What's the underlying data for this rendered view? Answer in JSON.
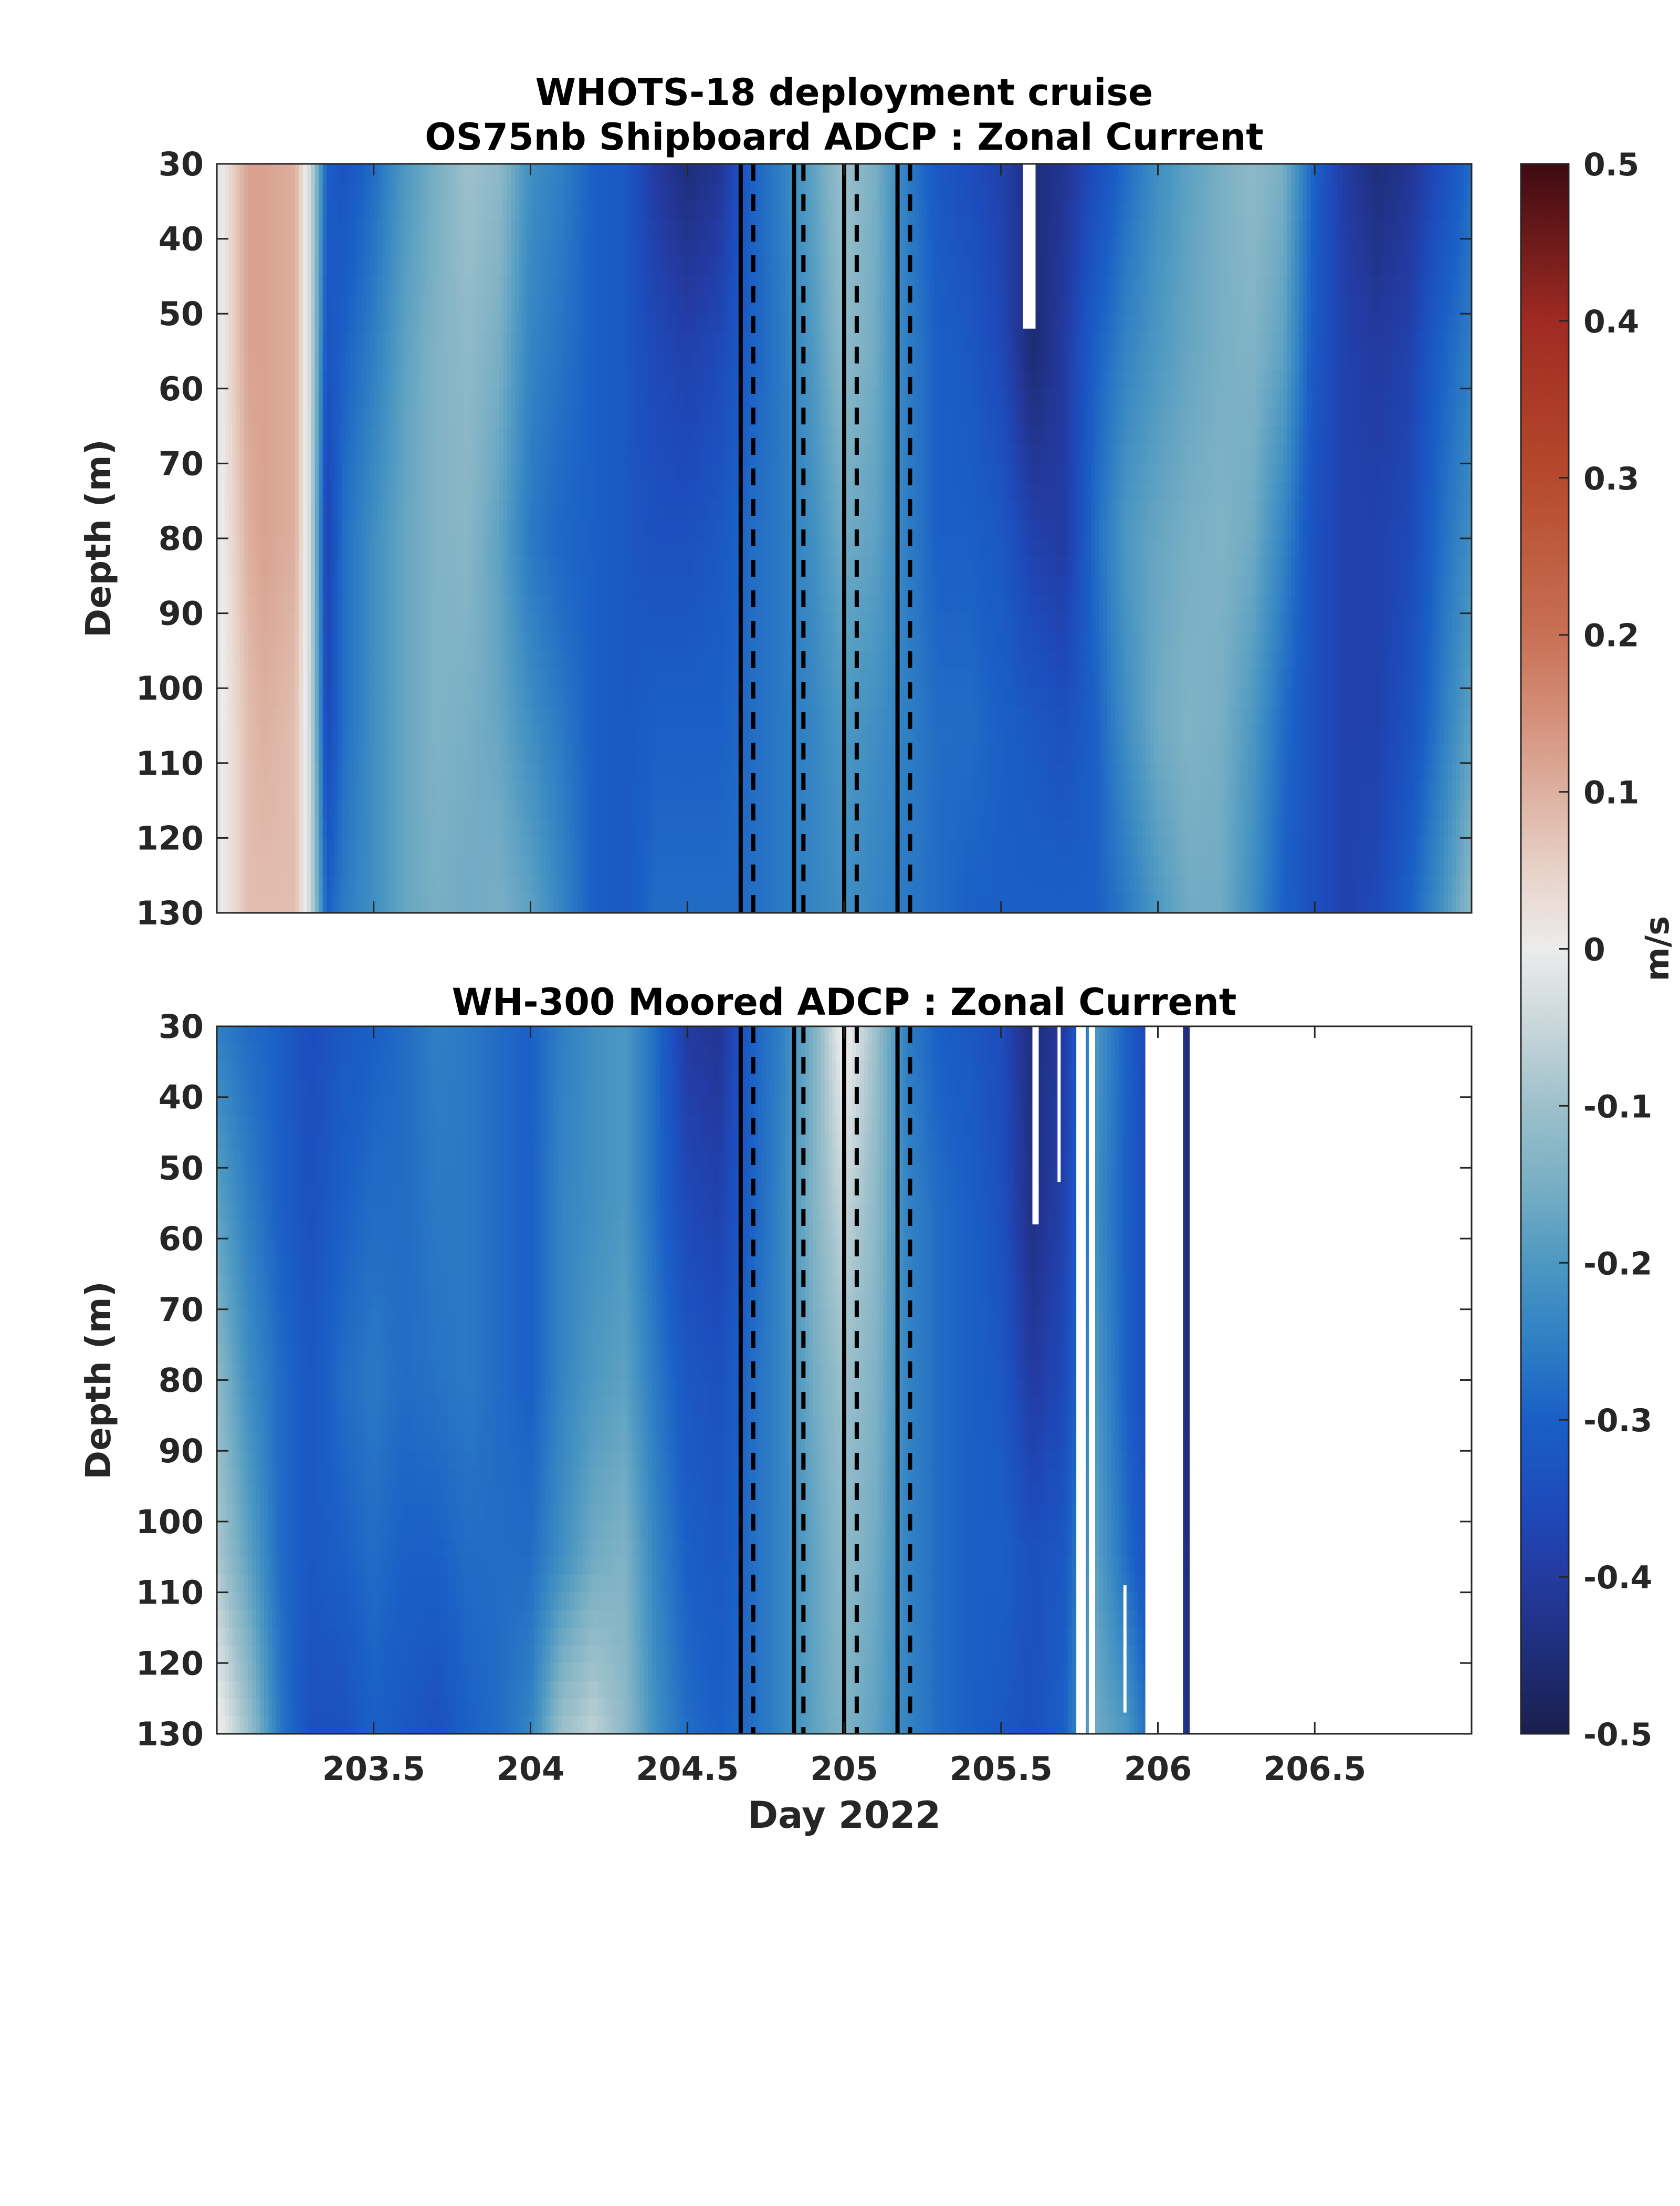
{
  "chart_data": {
    "type": "heatmap",
    "title": "WHOTS-18 deployment cruise",
    "colorbar": {
      "label": "m/s",
      "range": [
        -0.5,
        0.5
      ],
      "ticks": [
        -0.5,
        -0.4,
        -0.3,
        -0.2,
        -0.1,
        0,
        0.1,
        0.2,
        0.3,
        0.4,
        0.5
      ],
      "tick_labels": [
        "-0.5",
        "-0.4",
        "-0.3",
        "-0.2",
        "-0.1",
        "0",
        "0.1",
        "0.2",
        "0.3",
        "0.4",
        "0.5"
      ],
      "colormap": [
        [
          -0.5,
          "#1a1f4d"
        ],
        [
          -0.45,
          "#1f2e7a"
        ],
        [
          -0.4,
          "#233aa0"
        ],
        [
          -0.35,
          "#1d4cbd"
        ],
        [
          -0.3,
          "#1a5fc6"
        ],
        [
          -0.25,
          "#2f7fc4"
        ],
        [
          -0.2,
          "#4d98c2"
        ],
        [
          -0.15,
          "#79afc4"
        ],
        [
          -0.1,
          "#9dc0cb"
        ],
        [
          -0.05,
          "#c8d6da"
        ],
        [
          0,
          "#ececec"
        ],
        [
          0.05,
          "#e8d2c8"
        ],
        [
          0.1,
          "#ddb0a0"
        ],
        [
          0.15,
          "#d48e78"
        ],
        [
          0.2,
          "#c87055"
        ],
        [
          0.3,
          "#b64a2c"
        ],
        [
          0.4,
          "#a02a22"
        ],
        [
          0.5,
          "#3d0b12"
        ]
      ]
    },
    "vertical_lines": {
      "solid": [
        204.67,
        204.84,
        205.0,
        205.17
      ],
      "dashed": [
        204.71,
        204.87,
        205.04,
        205.21
      ]
    },
    "panels": [
      {
        "id": "shipboard",
        "title": "OS75nb Shipboard ADCP : Zonal Current",
        "xlabel": "",
        "ylabel": "Depth (m)",
        "xlim": [
          203.0,
          207.0
        ],
        "ylim": [
          30,
          130
        ],
        "y_reversed": true,
        "xticks": [
          203.5,
          204,
          204.5,
          205,
          205.5,
          206,
          206.5
        ],
        "xtick_labels": [],
        "yticks": [
          30,
          40,
          50,
          60,
          70,
          80,
          90,
          100,
          110,
          120,
          130
        ],
        "ytick_labels": [
          "30",
          "40",
          "50",
          "60",
          "70",
          "80",
          "90",
          "100",
          "110",
          "120",
          "130"
        ],
        "depths": [
          30,
          55,
          80,
          105,
          130
        ],
        "time": [
          203.0,
          203.1,
          203.15,
          203.25,
          203.3,
          203.35,
          203.4,
          203.5,
          203.6,
          203.7,
          203.8,
          203.9,
          204.0,
          204.1,
          204.2,
          204.3,
          204.4,
          204.5,
          204.6,
          204.7,
          204.8,
          204.9,
          205.0,
          205.1,
          205.2,
          205.3,
          205.4,
          205.5,
          205.6,
          205.7,
          205.8,
          205.9,
          206.0,
          206.1,
          206.2,
          206.3,
          206.4,
          206.5,
          206.6,
          206.7,
          206.8,
          206.9,
          207.0
        ],
        "u": [
          [
            -0.02,
            0.12,
            0.12,
            0.1,
            -0.05,
            -0.3,
            -0.33,
            -0.28,
            -0.2,
            -0.15,
            -0.1,
            -0.12,
            -0.22,
            -0.25,
            -0.3,
            -0.32,
            -0.4,
            -0.45,
            -0.42,
            -0.3,
            -0.25,
            -0.18,
            -0.1,
            -0.15,
            -0.25,
            -0.32,
            -0.35,
            -0.38,
            -0.45,
            -0.42,
            -0.35,
            -0.28,
            -0.22,
            -0.18,
            -0.15,
            -0.12,
            -0.15,
            -0.3,
            -0.4,
            -0.45,
            -0.42,
            -0.35,
            -0.28
          ],
          [
            -0.02,
            0.12,
            0.12,
            0.1,
            -0.05,
            -0.33,
            -0.3,
            -0.25,
            -0.18,
            -0.14,
            -0.12,
            -0.15,
            -0.24,
            -0.27,
            -0.3,
            -0.32,
            -0.36,
            -0.38,
            -0.36,
            -0.3,
            -0.26,
            -0.2,
            -0.12,
            -0.16,
            -0.25,
            -0.3,
            -0.32,
            -0.36,
            -0.46,
            -0.4,
            -0.3,
            -0.24,
            -0.2,
            -0.17,
            -0.15,
            -0.14,
            -0.18,
            -0.32,
            -0.38,
            -0.4,
            -0.38,
            -0.3,
            -0.25
          ],
          [
            -0.02,
            0.1,
            0.12,
            0.1,
            -0.05,
            -0.38,
            -0.28,
            -0.22,
            -0.17,
            -0.14,
            -0.13,
            -0.18,
            -0.26,
            -0.29,
            -0.3,
            -0.32,
            -0.34,
            -0.34,
            -0.32,
            -0.28,
            -0.26,
            -0.22,
            -0.16,
            -0.18,
            -0.25,
            -0.3,
            -0.3,
            -0.32,
            -0.38,
            -0.4,
            -0.28,
            -0.2,
            -0.17,
            -0.15,
            -0.14,
            -0.16,
            -0.24,
            -0.34,
            -0.38,
            -0.38,
            -0.36,
            -0.28,
            -0.22
          ],
          [
            -0.02,
            0.08,
            0.1,
            0.08,
            -0.05,
            -0.36,
            -0.28,
            -0.22,
            -0.17,
            -0.14,
            -0.15,
            -0.17,
            -0.22,
            -0.26,
            -0.3,
            -0.32,
            -0.3,
            -0.3,
            -0.3,
            -0.28,
            -0.26,
            -0.24,
            -0.2,
            -0.22,
            -0.25,
            -0.28,
            -0.28,
            -0.3,
            -0.32,
            -0.34,
            -0.3,
            -0.22,
            -0.16,
            -0.14,
            -0.15,
            -0.2,
            -0.28,
            -0.34,
            -0.38,
            -0.38,
            -0.34,
            -0.26,
            -0.18
          ],
          [
            -0.02,
            0.08,
            0.08,
            0.08,
            -0.05,
            -0.3,
            -0.26,
            -0.22,
            -0.17,
            -0.15,
            -0.16,
            -0.15,
            -0.18,
            -0.24,
            -0.3,
            -0.32,
            -0.28,
            -0.28,
            -0.28,
            -0.28,
            -0.26,
            -0.24,
            -0.22,
            -0.24,
            -0.26,
            -0.28,
            -0.3,
            -0.3,
            -0.3,
            -0.3,
            -0.3,
            -0.26,
            -0.2,
            -0.16,
            -0.16,
            -0.22,
            -0.3,
            -0.34,
            -0.38,
            -0.36,
            -0.3,
            -0.22,
            -0.12
          ]
        ],
        "missing": [
          {
            "x": [
              205.57,
              205.61
            ],
            "depth": [
              30,
              52
            ]
          }
        ]
      },
      {
        "id": "moored",
        "title": "WH-300 Moored ADCP : Zonal Current",
        "xlabel": "Day 2022",
        "ylabel": "Depth (m)",
        "xlim": [
          203.0,
          207.0
        ],
        "ylim": [
          30,
          130
        ],
        "y_reversed": true,
        "xticks": [
          203.5,
          204,
          204.5,
          205,
          205.5,
          206,
          206.5
        ],
        "xtick_labels": [
          "203.5",
          "204",
          "204.5",
          "205",
          "205.5",
          "206",
          "206.5"
        ],
        "yticks": [
          30,
          40,
          50,
          60,
          70,
          80,
          90,
          100,
          110,
          120,
          130
        ],
        "ytick_labels": [
          "30",
          "40",
          "50",
          "60",
          "70",
          "80",
          "90",
          "100",
          "110",
          "120",
          "130"
        ],
        "depths": [
          30,
          55,
          80,
          105,
          130
        ],
        "time": [
          203.0,
          203.1,
          203.2,
          203.3,
          203.4,
          203.5,
          203.6,
          203.7,
          203.8,
          203.9,
          204.0,
          204.1,
          204.2,
          204.3,
          204.4,
          204.5,
          204.6,
          204.7,
          204.8,
          204.9,
          205.0,
          205.1,
          205.2,
          205.3,
          205.4,
          205.5,
          205.6,
          205.7,
          205.8,
          205.9,
          206.0,
          206.1
        ],
        "u": [
          [
            -0.25,
            -0.28,
            -0.3,
            -0.35,
            -0.32,
            -0.3,
            -0.28,
            -0.25,
            -0.26,
            -0.28,
            -0.3,
            -0.25,
            -0.22,
            -0.2,
            -0.28,
            -0.4,
            -0.42,
            -0.3,
            -0.25,
            -0.15,
            0.02,
            -0.1,
            -0.25,
            -0.3,
            -0.32,
            -0.35,
            -0.45,
            -0.4,
            -0.2,
            -0.3,
            -0.4,
            -0.45
          ],
          [
            -0.18,
            -0.25,
            -0.3,
            -0.34,
            -0.3,
            -0.28,
            -0.28,
            -0.26,
            -0.26,
            -0.28,
            -0.3,
            -0.24,
            -0.22,
            -0.2,
            -0.28,
            -0.36,
            -0.38,
            -0.3,
            -0.24,
            -0.14,
            -0.05,
            -0.12,
            -0.24,
            -0.28,
            -0.3,
            -0.34,
            -0.44,
            -0.38,
            -0.22,
            -0.3,
            -0.38,
            -0.45
          ],
          [
            -0.12,
            -0.22,
            -0.28,
            -0.32,
            -0.28,
            -0.26,
            -0.28,
            -0.27,
            -0.26,
            -0.28,
            -0.3,
            -0.24,
            -0.2,
            -0.18,
            -0.26,
            -0.32,
            -0.34,
            -0.28,
            -0.24,
            -0.16,
            -0.1,
            -0.14,
            -0.24,
            -0.28,
            -0.3,
            -0.32,
            -0.4,
            -0.36,
            -0.2,
            -0.3,
            -0.38,
            -0.45
          ],
          [
            -0.08,
            -0.18,
            -0.28,
            -0.32,
            -0.3,
            -0.28,
            -0.3,
            -0.3,
            -0.28,
            -0.28,
            -0.28,
            -0.22,
            -0.16,
            -0.14,
            -0.24,
            -0.3,
            -0.32,
            -0.28,
            -0.24,
            -0.18,
            -0.12,
            -0.16,
            -0.24,
            -0.28,
            -0.3,
            -0.3,
            -0.34,
            -0.32,
            -0.18,
            -0.28,
            -0.36,
            -0.45
          ],
          [
            0.02,
            -0.1,
            -0.26,
            -0.34,
            -0.34,
            -0.3,
            -0.32,
            -0.34,
            -0.3,
            -0.28,
            -0.24,
            -0.1,
            -0.06,
            -0.12,
            -0.22,
            -0.28,
            -0.3,
            -0.28,
            -0.24,
            -0.18,
            -0.14,
            -0.18,
            -0.24,
            -0.28,
            -0.3,
            -0.32,
            -0.34,
            -0.3,
            -0.16,
            -0.2,
            -0.32,
            -0.45
          ]
        ],
        "missing": [
          {
            "x": [
              205.6,
              205.62
            ],
            "depth": [
              30,
              58
            ]
          },
          {
            "x": [
              205.68,
              205.69
            ],
            "depth": [
              30,
              52
            ]
          },
          {
            "x": [
              205.74,
              205.77
            ],
            "depth": [
              30,
              130
            ]
          },
          {
            "x": [
              205.78,
              205.8
            ],
            "depth": [
              30,
              130
            ]
          },
          {
            "x": [
              205.89,
              205.9
            ],
            "depth": [
              109,
              127
            ]
          },
          {
            "x": [
              205.96,
              206.08
            ],
            "depth": [
              30,
              130
            ]
          },
          {
            "x": [
              206.12,
              207.0
            ],
            "depth": [
              30,
              130
            ]
          }
        ]
      }
    ]
  }
}
